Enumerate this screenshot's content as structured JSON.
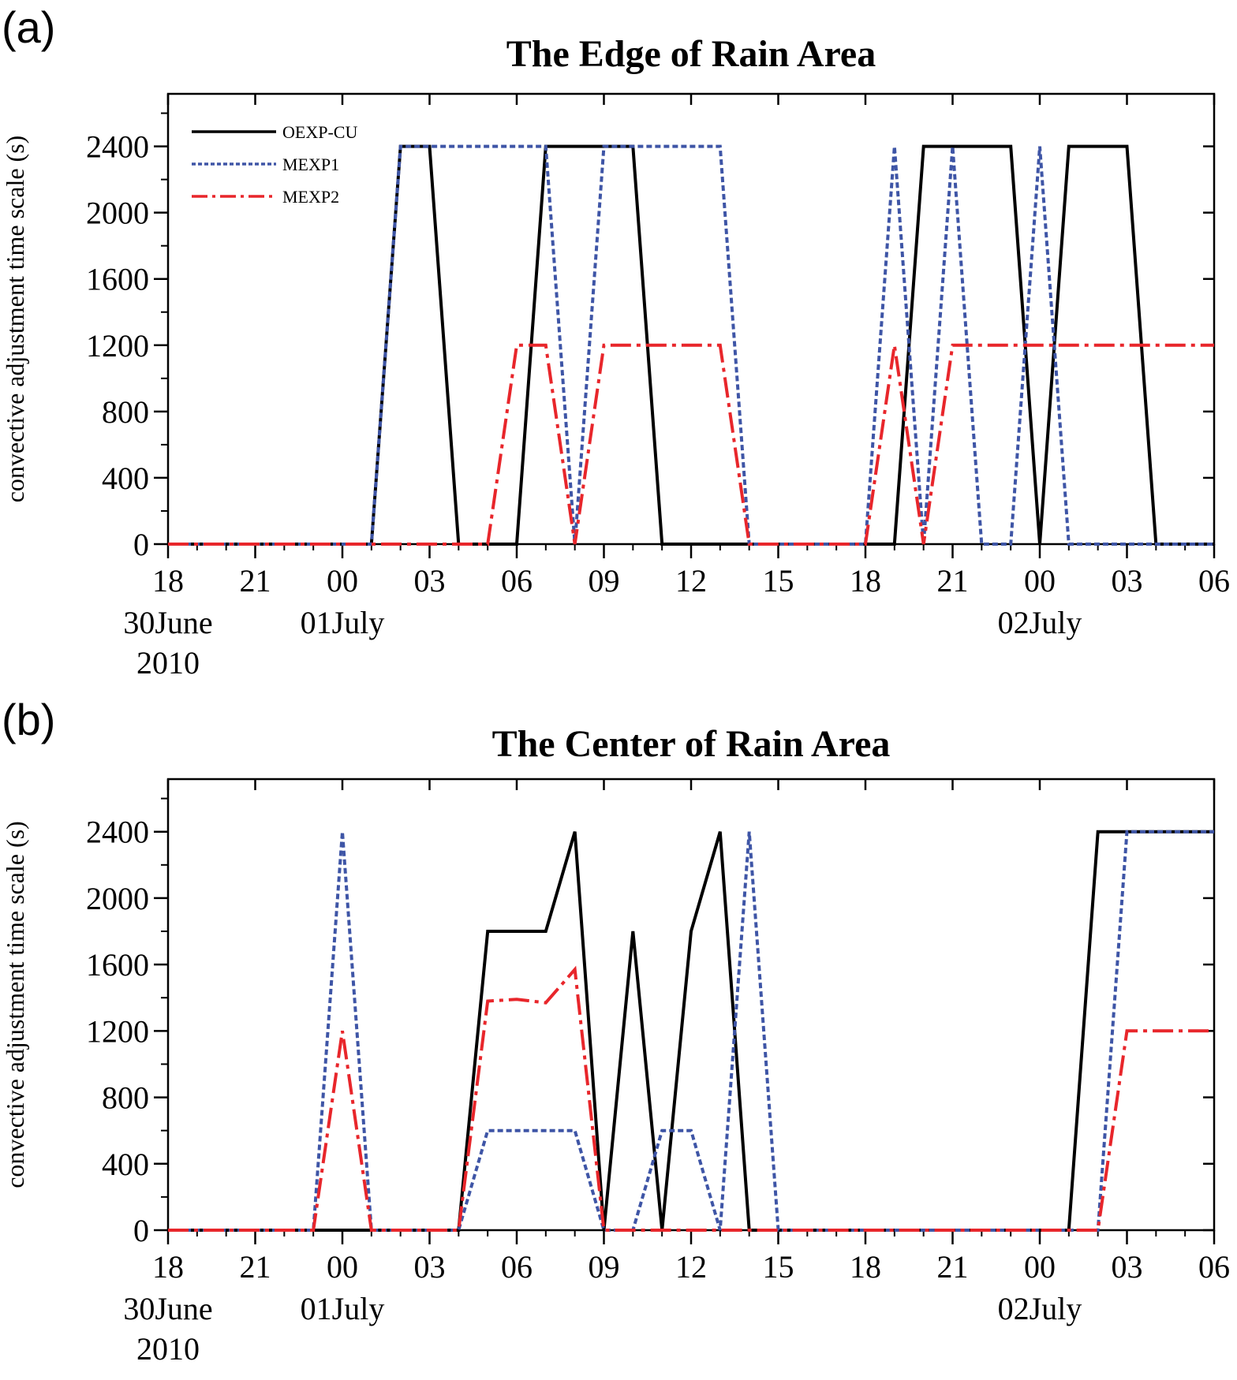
{
  "chart_data": [
    {
      "type": "line",
      "panel_label": "(a)",
      "title": "The Edge of Rain Area",
      "xlabel": "",
      "ylabel": "convective adjustment time scale (s)",
      "x_ticks": [
        "18",
        "21",
        "00",
        "03",
        "06",
        "09",
        "12",
        "15",
        "18",
        "21",
        "00",
        "03",
        "06"
      ],
      "x_date_labels": [
        {
          "tick": "18",
          "lines": [
            "30June",
            "2010"
          ]
        },
        {
          "tick": "00",
          "lines": [
            "01July"
          ]
        },
        {
          "tick": "00",
          "lines": [
            "02July"
          ]
        }
      ],
      "x_range_hours": [
        0,
        36
      ],
      "x_hours_per_step": 1,
      "ylim": [
        0,
        2400
      ],
      "y_ticks": [
        0,
        400,
        800,
        1200,
        1600,
        2000,
        2400
      ],
      "grid": false,
      "legend_position": "top-left",
      "series": [
        {
          "name": "OEXP-CU",
          "color": "#000000",
          "style": "solid",
          "values": [
            0,
            0,
            0,
            0,
            0,
            0,
            0,
            0,
            2400,
            2400,
            0,
            0,
            0,
            2400,
            2400,
            2400,
            2400,
            0,
            0,
            0,
            0,
            0,
            0,
            0,
            0,
            0,
            2400,
            2400,
            2400,
            2400,
            0,
            2400,
            2400,
            2400,
            0,
            0,
            0
          ]
        },
        {
          "name": "MEXP1",
          "color": "#3e55a6",
          "style": "dotted",
          "values": [
            0,
            0,
            0,
            0,
            0,
            0,
            0,
            0,
            2400,
            2400,
            2400,
            2400,
            2400,
            2400,
            0,
            2400,
            2400,
            2400,
            2400,
            2400,
            0,
            0,
            0,
            0,
            0,
            2400,
            0,
            2400,
            0,
            0,
            2400,
            0,
            0,
            0,
            0,
            0,
            0
          ]
        },
        {
          "name": "MEXP2",
          "color": "#e8262b",
          "style": "dashdot",
          "values": [
            0,
            0,
            0,
            0,
            0,
            0,
            0,
            0,
            0,
            0,
            0,
            0,
            1200,
            1200,
            0,
            1200,
            1200,
            1200,
            1200,
            1200,
            0,
            0,
            0,
            0,
            0,
            1200,
            0,
            1200,
            1200,
            1200,
            1200,
            1200,
            1200,
            1200,
            1200,
            1200,
            1200
          ]
        }
      ]
    },
    {
      "type": "line",
      "panel_label": "(b)",
      "title": "The Center of Rain Area",
      "xlabel": "",
      "ylabel": "convective adjustment time scale (s)",
      "x_ticks": [
        "18",
        "21",
        "00",
        "03",
        "06",
        "09",
        "12",
        "15",
        "18",
        "21",
        "00",
        "03",
        "06"
      ],
      "x_date_labels": [
        {
          "tick": "18",
          "lines": [
            "30June",
            "2010"
          ]
        },
        {
          "tick": "00",
          "lines": [
            "01July"
          ]
        },
        {
          "tick": "00",
          "lines": [
            "02July"
          ]
        }
      ],
      "x_range_hours": [
        0,
        36
      ],
      "x_hours_per_step": 1,
      "ylim": [
        0,
        2400
      ],
      "y_ticks": [
        0,
        400,
        800,
        1200,
        1600,
        2000,
        2400
      ],
      "grid": false,
      "series": [
        {
          "name": "OEXP-CU",
          "color": "#000000",
          "style": "solid",
          "values": [
            0,
            0,
            0,
            0,
            0,
            0,
            0,
            0,
            0,
            0,
            0,
            1800,
            1800,
            1800,
            2400,
            0,
            1800,
            0,
            1800,
            2400,
            0,
            0,
            0,
            0,
            0,
            0,
            0,
            0,
            0,
            0,
            0,
            0,
            2400,
            2400,
            2400,
            2400,
            2400
          ]
        },
        {
          "name": "MEXP1",
          "color": "#3e55a6",
          "style": "dotted",
          "values": [
            0,
            0,
            0,
            0,
            0,
            0,
            2400,
            0,
            0,
            0,
            0,
            600,
            600,
            600,
            600,
            0,
            0,
            600,
            600,
            0,
            2400,
            0,
            0,
            0,
            0,
            0,
            0,
            0,
            0,
            0,
            0,
            0,
            0,
            2400,
            2400,
            2400,
            2400
          ]
        },
        {
          "name": "MEXP2",
          "color": "#e8262b",
          "style": "dashdot",
          "values": [
            0,
            0,
            0,
            0,
            0,
            0,
            1200,
            0,
            0,
            0,
            0,
            1380,
            1390,
            1370,
            1570,
            0,
            0,
            0,
            0,
            0,
            0,
            0,
            0,
            0,
            0,
            0,
            0,
            0,
            0,
            0,
            0,
            0,
            0,
            1200,
            1200,
            1200,
            1200
          ]
        }
      ]
    }
  ]
}
